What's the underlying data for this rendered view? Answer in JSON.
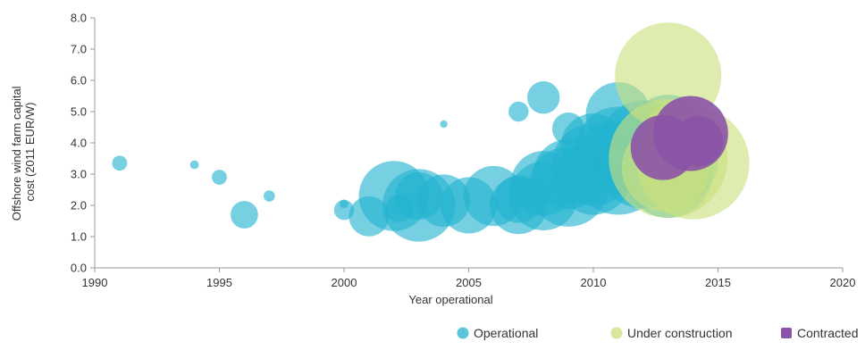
{
  "chart_data": {
    "type": "scatter",
    "subtype": "bubble",
    "title": "",
    "xlabel": "Year operational",
    "ylabel_lines": [
      "Offshore wind farm capital",
      "cost (2011 EUR/W)"
    ],
    "xlim": [
      1990,
      2020
    ],
    "ylim": [
      0,
      8
    ],
    "x_ticks": [
      1990,
      1995,
      2000,
      2005,
      2010,
      2015,
      2020
    ],
    "y_ticks": [
      "0.0",
      "1.0",
      "2.0",
      "3.0",
      "4.0",
      "5.0",
      "6.0",
      "7.0",
      "8.0"
    ],
    "grid": false,
    "legend_position": "bottom-right",
    "size_note": "bubble size is relative (no size legend shown)",
    "series": [
      {
        "name": "Operational",
        "color": "#22b3d0",
        "points": [
          {
            "x": 1991,
            "y": 3.35,
            "s": 1.2
          },
          {
            "x": 1994,
            "y": 3.3,
            "s": 0.7
          },
          {
            "x": 1995,
            "y": 2.9,
            "s": 1.2
          },
          {
            "x": 1996,
            "y": 1.7,
            "s": 2.2
          },
          {
            "x": 1997,
            "y": 2.3,
            "s": 0.9
          },
          {
            "x": 2000,
            "y": 2.05,
            "s": 0.7
          },
          {
            "x": 2000,
            "y": 1.85,
            "s": 1.6
          },
          {
            "x": 2001,
            "y": 1.65,
            "s": 3.2
          },
          {
            "x": 2002,
            "y": 2.3,
            "s": 5.6
          },
          {
            "x": 2002.2,
            "y": 1.9,
            "s": 2.2
          },
          {
            "x": 2003,
            "y": 2.3,
            "s": 3.8
          },
          {
            "x": 2003,
            "y": 2.0,
            "s": 5.8
          },
          {
            "x": 2004,
            "y": 4.6,
            "s": 0.6
          },
          {
            "x": 2004,
            "y": 2.15,
            "s": 4.2
          },
          {
            "x": 2005,
            "y": 2.0,
            "s": 4.5
          },
          {
            "x": 2006,
            "y": 2.3,
            "s": 4.8
          },
          {
            "x": 2007,
            "y": 5.0,
            "s": 1.6
          },
          {
            "x": 2007,
            "y": 2.2,
            "s": 3.8
          },
          {
            "x": 2007,
            "y": 2.0,
            "s": 4.6
          },
          {
            "x": 2008,
            "y": 5.45,
            "s": 2.6
          },
          {
            "x": 2008,
            "y": 2.7,
            "s": 5.2
          },
          {
            "x": 2008,
            "y": 2.3,
            "s": 5.5
          },
          {
            "x": 2009,
            "y": 4.45,
            "s": 2.6
          },
          {
            "x": 2009,
            "y": 3.0,
            "s": 5.6
          },
          {
            "x": 2009,
            "y": 2.6,
            "s": 6.4
          },
          {
            "x": 2010,
            "y": 3.9,
            "s": 5.2
          },
          {
            "x": 2010,
            "y": 3.3,
            "s": 6.6
          },
          {
            "x": 2010,
            "y": 2.9,
            "s": 6.0
          },
          {
            "x": 2011,
            "y": 4.9,
            "s": 5.2
          },
          {
            "x": 2011,
            "y": 3.8,
            "s": 6.8
          },
          {
            "x": 2011,
            "y": 3.2,
            "s": 7.5
          },
          {
            "x": 2012,
            "y": 4.0,
            "s": 6.8
          },
          {
            "x": 2012,
            "y": 3.4,
            "s": 7.5
          },
          {
            "x": 2013,
            "y": 4.3,
            "s": 6.2
          },
          {
            "x": 2013,
            "y": 3.5,
            "s": 8.0
          },
          {
            "x": 2013,
            "y": 3.0,
            "s": 7.0
          }
        ]
      },
      {
        "name": "Under construction",
        "color": "#c9e07e",
        "points": [
          {
            "x": 2013,
            "y": 6.15,
            "s": 8.5
          },
          {
            "x": 2014,
            "y": 3.35,
            "s": 9.0
          },
          {
            "x": 2013,
            "y": 3.5,
            "s": 9.5
          },
          {
            "x": 2012.9,
            "y": 3.2,
            "s": 7.0
          },
          {
            "x": 2013.3,
            "y": 4.3,
            "s": 5.0
          }
        ]
      },
      {
        "name": "Contracted",
        "color": "#8c53a6",
        "points": [
          {
            "x": 2013.9,
            "y": 4.3,
            "s": 6.0
          },
          {
            "x": 2012.8,
            "y": 3.85,
            "s": 5.2
          },
          {
            "x": 2014.2,
            "y": 4.05,
            "s": 4.0
          }
        ]
      }
    ]
  }
}
